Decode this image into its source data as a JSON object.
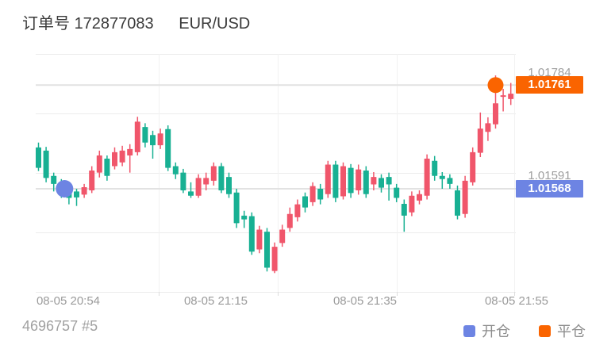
{
  "header": {
    "order_label": "订单号",
    "order_number": "172877083",
    "symbol": "EUR/USD"
  },
  "footer": {
    "trade_id": "4696757 #5",
    "legend": [
      {
        "label": "开仓",
        "color": "#6d84e3"
      },
      {
        "label": "平仓",
        "color": "#fa6400"
      }
    ]
  },
  "chart_data": {
    "type": "candlestick",
    "symbol": "EUR/USD",
    "x_tick_labels": [
      "08-05 20:54",
      "08-05 21:15",
      "08-05 21:35",
      "08-05 21:55"
    ],
    "y_range": {
      "min": 1.01376,
      "max": 1.01819
    },
    "grid": true,
    "up_color": "#f0566b",
    "down_color": "#18b093",
    "grid_color": "#ececec",
    "price_line_color": "#e2e2e2",
    "open_marker": {
      "price": 1.01568,
      "badge": "1.01568",
      "axis_label": "1.01591",
      "color": "#6d84e3",
      "candle_index": 3
    },
    "close_marker": {
      "price": 1.01761,
      "badge": "1.01761",
      "axis_label": "1.01784",
      "color": "#fa6400",
      "candle_index": 60
    },
    "candles": [
      [
        1.01645,
        1.01654,
        1.01601,
        1.01607
      ],
      [
        1.01639,
        1.01646,
        1.0158,
        1.01588
      ],
      [
        1.01592,
        1.01598,
        1.01563,
        1.01577
      ],
      [
        1.0158,
        1.01586,
        1.01551,
        1.01557
      ],
      [
        1.01565,
        1.01571,
        1.01539,
        1.01551
      ],
      [
        1.01563,
        1.01568,
        1.01536,
        1.01552
      ],
      [
        1.01557,
        1.01577,
        1.01551,
        1.01571
      ],
      [
        1.01565,
        1.0161,
        1.0156,
        1.01602
      ],
      [
        1.01598,
        1.01639,
        1.01589,
        1.0163
      ],
      [
        1.01624,
        1.0163,
        1.01583,
        1.01592
      ],
      [
        1.0161,
        1.01645,
        1.01604,
        1.01636
      ],
      [
        1.01617,
        1.01648,
        1.0161,
        1.01639
      ],
      [
        1.0163,
        1.01651,
        1.01598,
        1.01642
      ],
      [
        1.01636,
        1.01702,
        1.0163,
        1.01693
      ],
      [
        1.01683,
        1.0169,
        1.01645,
        1.01654
      ],
      [
        1.01668,
        1.01676,
        1.01624,
        1.01649
      ],
      [
        1.01649,
        1.0168,
        1.01642,
        1.01671
      ],
      [
        1.01679,
        1.01686,
        1.01601,
        1.01607
      ],
      [
        1.0161,
        1.01617,
        1.01586,
        1.01595
      ],
      [
        1.01598,
        1.01605,
        1.0156,
        1.01565
      ],
      [
        1.01563,
        1.0158,
        1.01551,
        1.01555
      ],
      [
        1.01555,
        1.01595,
        1.01551,
        1.01588
      ],
      [
        1.01576,
        1.01598,
        1.01565,
        1.01588
      ],
      [
        1.01583,
        1.01617,
        1.01574,
        1.0161
      ],
      [
        1.0161,
        1.01616,
        1.0156,
        1.01565
      ],
      [
        1.0159,
        1.01598,
        1.01551,
        1.01558
      ],
      [
        1.01561,
        1.01568,
        1.01495,
        1.01504
      ],
      [
        1.01518,
        1.01527,
        1.01495,
        1.01511
      ],
      [
        1.01517,
        1.01524,
        1.01445,
        1.01451
      ],
      [
        1.01455,
        1.01499,
        1.01448,
        1.01492
      ],
      [
        1.01488,
        1.01495,
        1.01414,
        1.01421
      ],
      [
        1.01415,
        1.01468,
        1.01411,
        1.0146
      ],
      [
        1.01467,
        1.01501,
        1.0146,
        1.01492
      ],
      [
        1.01495,
        1.01533,
        1.01488,
        1.01521
      ],
      [
        1.01515,
        1.01548,
        1.01507,
        1.01539
      ],
      [
        1.01554,
        1.01561,
        1.01524,
        1.01533
      ],
      [
        1.01543,
        1.0158,
        1.01536,
        1.01573
      ],
      [
        1.01568,
        1.01577,
        1.01539,
        1.01548
      ],
      [
        1.01558,
        1.0162,
        1.01551,
        1.01613
      ],
      [
        1.01613,
        1.0162,
        1.01543,
        1.01551
      ],
      [
        1.01554,
        1.01617,
        1.01548,
        1.0161
      ],
      [
        1.01607,
        1.01614,
        1.01551,
        1.0156
      ],
      [
        1.01565,
        1.01613,
        1.01557,
        1.01604
      ],
      [
        1.01602,
        1.0161,
        1.01551,
        1.01558
      ],
      [
        1.01576,
        1.01599,
        1.01565,
        1.0159
      ],
      [
        1.01588,
        1.01595,
        1.01561,
        1.0157
      ],
      [
        1.0159,
        1.01598,
        1.01546,
        1.01576
      ],
      [
        1.0157,
        1.01577,
        1.01543,
        1.01551
      ],
      [
        1.0154,
        1.01548,
        1.01488,
        1.01518
      ],
      [
        1.01524,
        1.01563,
        1.01517,
        1.01555
      ],
      [
        1.01546,
        1.01565,
        1.01539,
        1.01558
      ],
      [
        1.01555,
        1.01632,
        1.01548,
        1.01624
      ],
      [
        1.0162,
        1.01629,
        1.01583,
        1.01592
      ],
      [
        1.01592,
        1.01599,
        1.01568,
        1.01586
      ],
      [
        1.01588,
        1.01595,
        1.01568,
        1.01577
      ],
      [
        1.01565,
        1.01574,
        1.01511,
        1.01518
      ],
      [
        1.01521,
        1.01592,
        1.01514,
        1.01583
      ],
      [
        1.0158,
        1.01645,
        1.01574,
        1.01636
      ],
      [
        1.01635,
        1.0171,
        1.01627,
        1.0168
      ],
      [
        1.01674,
        1.01701,
        1.01657,
        1.0169
      ],
      [
        1.01688,
        1.01779,
        1.0168,
        1.01727
      ],
      [
        1.01739,
        1.01754,
        1.01712,
        1.01742
      ],
      [
        1.01735,
        1.01765,
        1.01724,
        1.01745
      ]
    ]
  }
}
